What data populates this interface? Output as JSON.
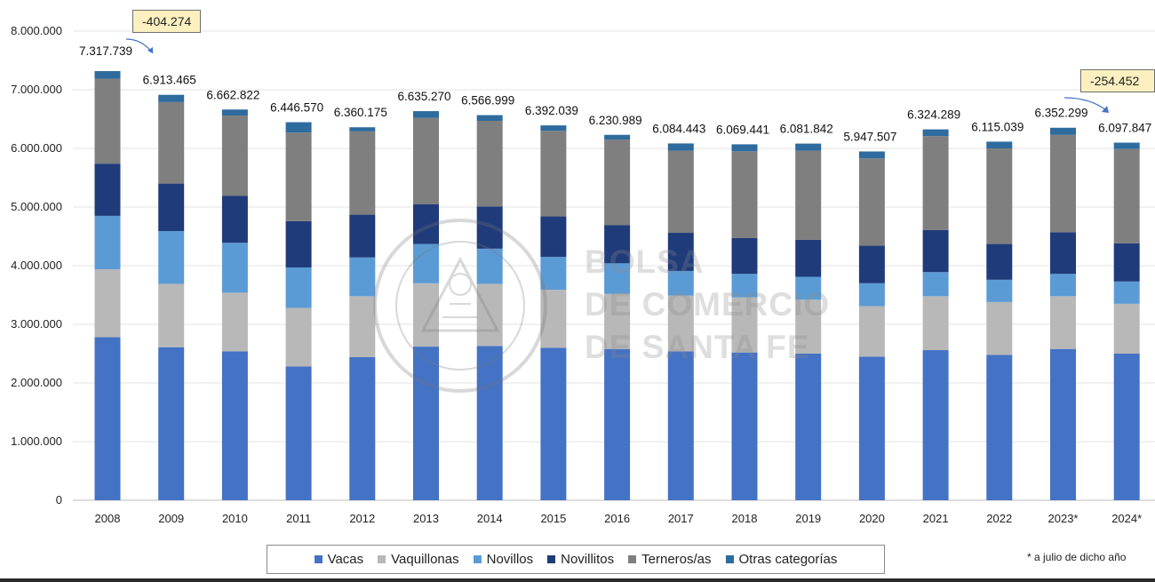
{
  "chart_data": {
    "type": "bar",
    "stacked": true,
    "categories": [
      "2008",
      "2009",
      "2010",
      "2011",
      "2012",
      "2013",
      "2014",
      "2015",
      "2016",
      "2017",
      "2018",
      "2019",
      "2020",
      "2021",
      "2022",
      "2023*",
      "2024*"
    ],
    "series": [
      {
        "name": "Vacas",
        "color": "#4472c4",
        "values": [
          2780000,
          2610000,
          2540000,
          2280000,
          2440000,
          2620000,
          2630000,
          2600000,
          2580000,
          2540000,
          2520000,
          2500000,
          2450000,
          2560000,
          2480000,
          2580000,
          2500000
        ]
      },
      {
        "name": "Vaquillonas",
        "color": "#b8b8b8",
        "values": [
          1160000,
          1080000,
          1000000,
          1000000,
          1040000,
          1080000,
          1060000,
          990000,
          940000,
          950000,
          940000,
          920000,
          860000,
          920000,
          900000,
          900000,
          850000
        ]
      },
      {
        "name": "Novillos",
        "color": "#5b9bd5",
        "values": [
          910000,
          900000,
          850000,
          690000,
          660000,
          670000,
          600000,
          560000,
          520000,
          420000,
          400000,
          390000,
          390000,
          410000,
          380000,
          380000,
          380000
        ]
      },
      {
        "name": "Novillitos",
        "color": "#1f3b7a",
        "values": [
          890000,
          810000,
          800000,
          790000,
          730000,
          680000,
          720000,
          690000,
          650000,
          650000,
          610000,
          630000,
          640000,
          720000,
          610000,
          710000,
          650000
        ]
      },
      {
        "name": "Terneros/as",
        "color": "#7f7f7f",
        "values": [
          1450000,
          1390000,
          1370000,
          1510000,
          1420000,
          1470000,
          1460000,
          1460000,
          1460000,
          1400000,
          1480000,
          1520000,
          1490000,
          1600000,
          1630000,
          1660000,
          1610000
        ]
      },
      {
        "name": "Otras categorías",
        "color": "#2e6b9e",
        "values": [
          127739,
          123465,
          102822,
          176570,
          70175,
          115270,
          96999,
          92039,
          80989,
          124443,
          119441,
          121842,
          117507,
          114289,
          115039,
          122299,
          107847
        ]
      }
    ],
    "totals_labels": [
      "7.317.739",
      "6.913.465",
      "6.662.822",
      "6.446.570",
      "6.360.175",
      "6.635.270",
      "6.566.999",
      "6.392.039",
      "6.230.989",
      "6.084.443",
      "6.069.441",
      "6.081.842",
      "5.947.507",
      "6.324.289",
      "6.115.039",
      "6.352.299",
      "6.097.847"
    ],
    "y_ticks": [
      "0",
      "1.000.000",
      "2.000.000",
      "3.000.000",
      "4.000.000",
      "5.000.000",
      "6.000.000",
      "7.000.000",
      "8.000.000"
    ],
    "ylim": [
      0,
      8000000
    ],
    "grid": true,
    "legend_position": "bottom",
    "annotations": [
      "-404.274",
      "-254.452"
    ],
    "footnote": "* a julio de dicho año"
  },
  "watermark": {
    "seal_top": "BOLSA DE COMERCIO",
    "seal_bottom": "DE SANTA FE",
    "line1": "BOLSA",
    "line2": "DE COMERCIO",
    "line3": "DE SANTA FE"
  }
}
